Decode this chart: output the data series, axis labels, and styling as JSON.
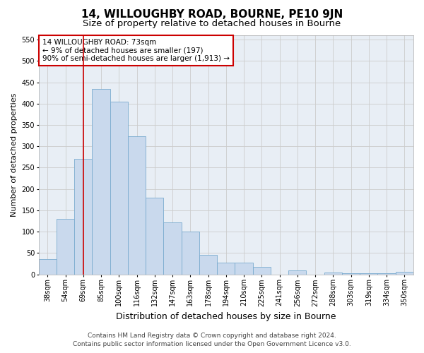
{
  "title": "14, WILLOUGHBY ROAD, BOURNE, PE10 9JN",
  "subtitle": "Size of property relative to detached houses in Bourne",
  "xlabel": "Distribution of detached houses by size in Bourne",
  "ylabel": "Number of detached properties",
  "categories": [
    "38sqm",
    "54sqm",
    "69sqm",
    "85sqm",
    "100sqm",
    "116sqm",
    "132sqm",
    "147sqm",
    "163sqm",
    "178sqm",
    "194sqm",
    "210sqm",
    "225sqm",
    "241sqm",
    "256sqm",
    "272sqm",
    "288sqm",
    "303sqm",
    "319sqm",
    "334sqm",
    "350sqm"
  ],
  "values": [
    35,
    130,
    270,
    435,
    405,
    323,
    180,
    122,
    101,
    45,
    28,
    28,
    17,
    0,
    9,
    0,
    5,
    3,
    2,
    2,
    6
  ],
  "bar_color": "#c9d9ed",
  "bar_edge_color": "#7aabcf",
  "redline_x": 2,
  "annotation_text": "14 WILLOUGHBY ROAD: 73sqm\n← 9% of detached houses are smaller (197)\n90% of semi-detached houses are larger (1,913) →",
  "annotation_box_color": "#ffffff",
  "annotation_box_edge_color": "#cc0000",
  "ylim": [
    0,
    560
  ],
  "yticks": [
    0,
    50,
    100,
    150,
    200,
    250,
    300,
    350,
    400,
    450,
    500,
    550
  ],
  "grid_color": "#cccccc",
  "ax_bg_color": "#e8eef5",
  "background_color": "#ffffff",
  "footer_line1": "Contains HM Land Registry data © Crown copyright and database right 2024.",
  "footer_line2": "Contains public sector information licensed under the Open Government Licence v3.0.",
  "title_fontsize": 11,
  "subtitle_fontsize": 9.5,
  "xlabel_fontsize": 9,
  "ylabel_fontsize": 8,
  "tick_fontsize": 7,
  "annotation_fontsize": 7.5,
  "footer_fontsize": 6.5
}
